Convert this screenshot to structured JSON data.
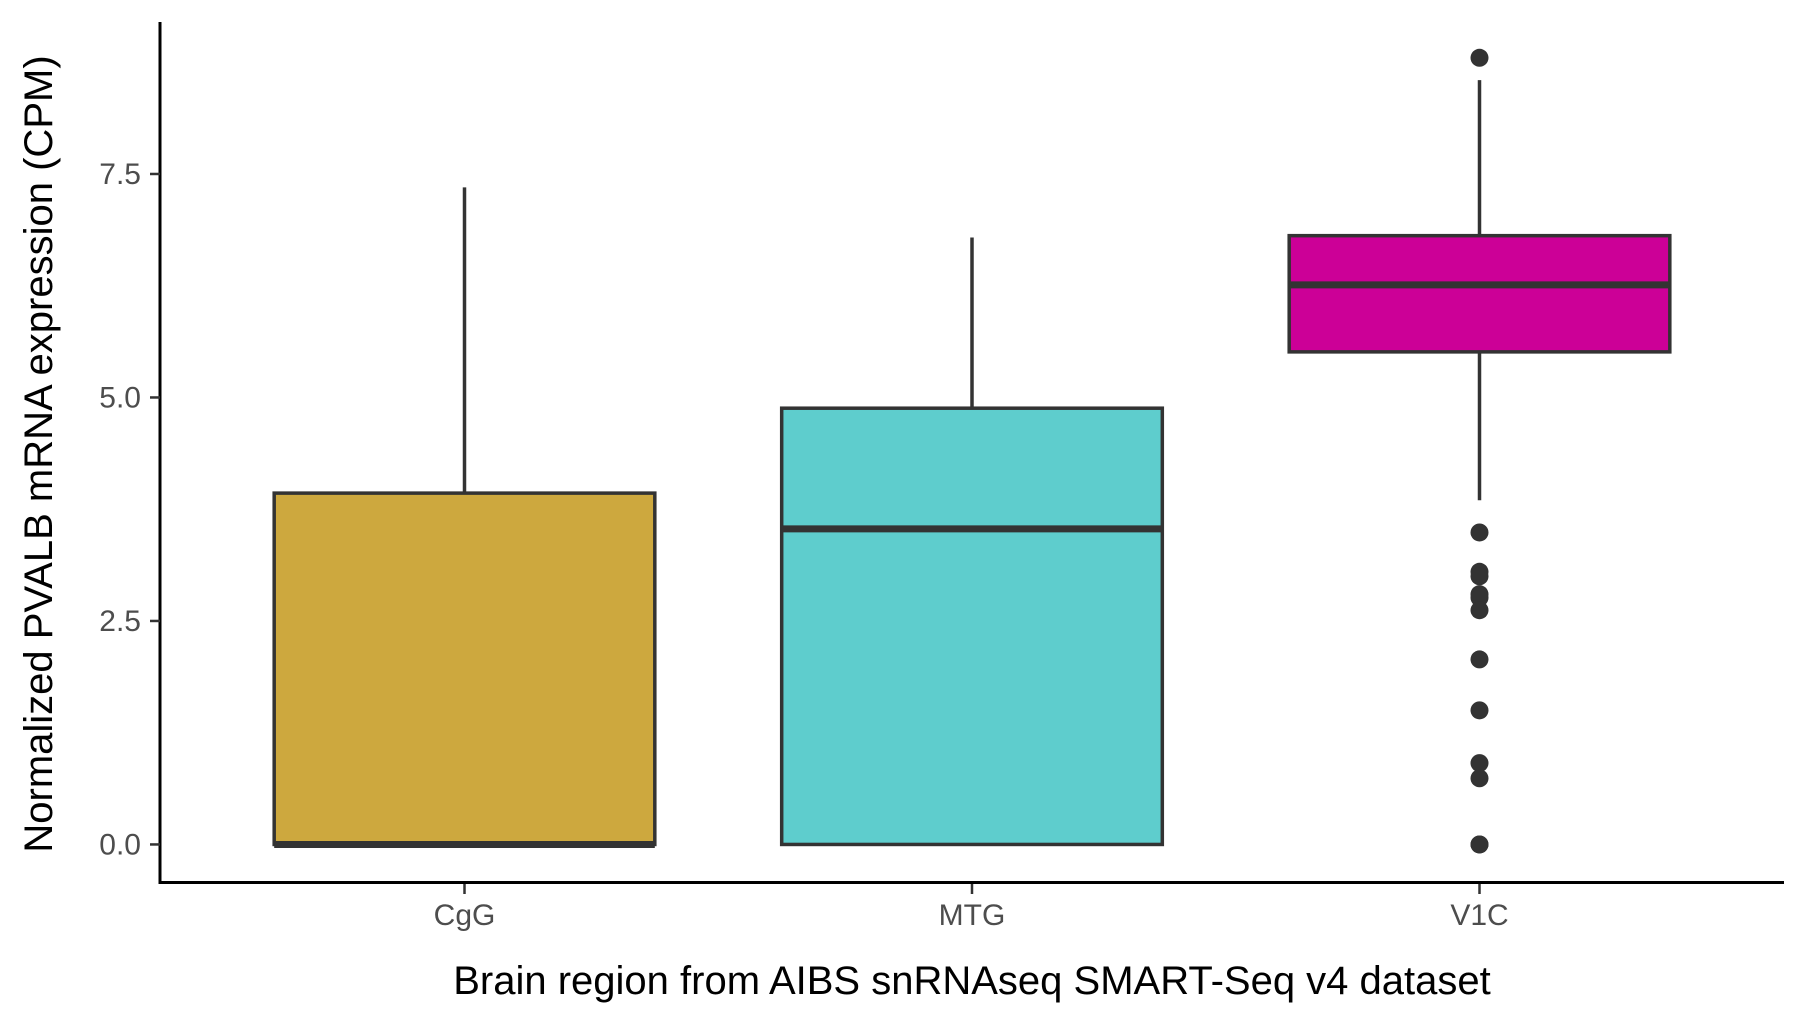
{
  "chart_data": {
    "type": "box",
    "title": "",
    "xlabel": "Brain region from AIBS snRNAseq SMART-Seq v4 dataset",
    "ylabel": "Normalized PVALB mRNA expression (CPM)",
    "ylim": [
      -0.42,
      9.2
    ],
    "yticks": [
      0.0,
      2.5,
      5.0,
      7.5
    ],
    "ytick_labels": [
      "0.0",
      "2.5",
      "5.0",
      "7.5"
    ],
    "grid": false,
    "legend": "none",
    "categories": [
      "CgG",
      "MTG",
      "V1C"
    ],
    "boxes": [
      {
        "category": "CgG",
        "min": 0.0,
        "q1": 0.0,
        "median": 0.0,
        "q3": 3.93,
        "max": 7.35,
        "outliers": [],
        "color": "#CDA83E"
      },
      {
        "category": "MTG",
        "min": 0.0,
        "q1": 0.0,
        "median": 3.53,
        "q3": 4.88,
        "max": 6.79,
        "outliers": [],
        "color": "#5ECDCD"
      },
      {
        "category": "V1C",
        "min": 3.85,
        "q1": 5.51,
        "median": 6.26,
        "q3": 6.81,
        "max": 8.55,
        "outliers": [
          8.8,
          3.49,
          3.05,
          3.0,
          2.8,
          2.76,
          2.62,
          2.07,
          1.5,
          0.91,
          0.74,
          0.0,
          0.0
        ],
        "color": "#CC0097"
      }
    ],
    "line_color": "#333333",
    "axis_color": "#000000"
  }
}
